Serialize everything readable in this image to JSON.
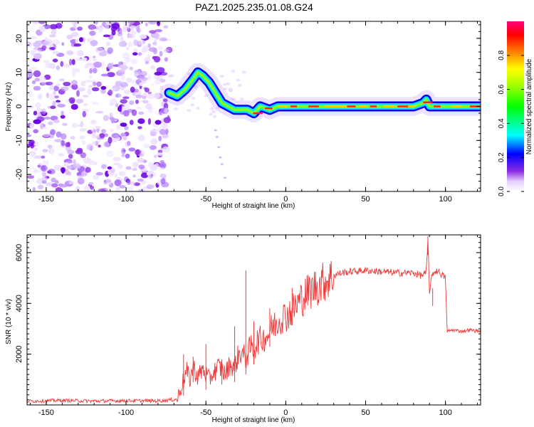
{
  "chart_data": [
    {
      "type": "heatmap",
      "title": "PAZ1.2025.235.01.08.G24",
      "xlabel": "Height of straight line (km)",
      "ylabel": "Frequency (Hz)",
      "xlim": [
        -162,
        122
      ],
      "ylim": [
        -25,
        25
      ],
      "x_ticks": [
        -150,
        -100,
        -50,
        0,
        50,
        100
      ],
      "y_ticks": [
        -20,
        -10,
        0,
        10,
        20
      ],
      "colorbar": {
        "label": "Normalized spectral amplitude",
        "range": [
          0,
          1
        ],
        "ticks": [
          0.0,
          0.2,
          0.4,
          0.6,
          0.8
        ],
        "tick_labels": [
          "0.0",
          "0.2",
          "0.4",
          "0.6",
          "0.8"
        ]
      },
      "noise_region_x": [
        -162,
        -73
      ],
      "signal_track": {
        "x": [
          -73,
          -68,
          -63,
          -58,
          -55,
          -52,
          -48,
          -44,
          -40,
          -36,
          -32,
          -28,
          -24,
          -20,
          -16,
          -10,
          -5,
          0,
          10,
          30,
          50,
          70,
          80,
          86,
          88,
          90,
          95,
          100,
          110,
          122
        ],
        "frequency": [
          4,
          3,
          5,
          8,
          10,
          9,
          7,
          4,
          1,
          0,
          -1,
          -1,
          -1,
          -2,
          0,
          -1,
          0,
          0,
          0,
          0,
          0,
          0,
          0,
          1,
          2,
          0,
          0,
          0,
          0,
          0
        ]
      }
    },
    {
      "type": "line",
      "xlabel": "Height of straight line (km)",
      "ylabel": "SNR (10 * v/v)",
      "xlim": [
        -162,
        122
      ],
      "ylim": [
        0,
        6700
      ],
      "x_ticks": [
        -150,
        -100,
        -50,
        0,
        50,
        100
      ],
      "y_ticks": [
        2000,
        4000,
        6000
      ],
      "series": [
        {
          "name": "SNR",
          "color": "#ee3a3a",
          "x": [
            -162,
            -140,
            -120,
            -100,
            -80,
            -68,
            -65,
            -62,
            -60,
            -58,
            -55,
            -52,
            -50,
            -48,
            -45,
            -42,
            -40,
            -38,
            -35,
            -32,
            -30,
            -28,
            -25,
            -22,
            -20,
            -18,
            -15,
            -12,
            -10,
            -8,
            -5,
            -2,
            0,
            5,
            10,
            15,
            20,
            25,
            30,
            35,
            40,
            50,
            60,
            70,
            80,
            85,
            88,
            89,
            90,
            92,
            95,
            100,
            101,
            105,
            110,
            115,
            122
          ],
          "y": [
            150,
            180,
            150,
            170,
            160,
            220,
            800,
            1300,
            1000,
            1500,
            1100,
            1400,
            1200,
            1000,
            1300,
            1500,
            1400,
            1200,
            1600,
            1500,
            1900,
            2100,
            1800,
            2300,
            2200,
            2500,
            2600,
            2700,
            2900,
            3100,
            3300,
            3500,
            3500,
            3800,
            4200,
            4500,
            4700,
            4900,
            5100,
            5200,
            5250,
            5300,
            5250,
            5200,
            5200,
            5100,
            5200,
            6500,
            4500,
            5200,
            5300,
            5000,
            2900,
            2950,
            2900,
            2950,
            2900
          ],
          "spikes": [
            {
              "x": -64,
              "y": 2000
            },
            {
              "x": -58,
              "y": 1900
            },
            {
              "x": -50,
              "y": 2400
            },
            {
              "x": -40,
              "y": 1800
            },
            {
              "x": -32,
              "y": 3100
            },
            {
              "x": -25,
              "y": 5300
            },
            {
              "x": -20,
              "y": 3300
            },
            {
              "x": -10,
              "y": 3800
            },
            {
              "x": 4,
              "y": 4600
            },
            {
              "x": 89,
              "y": 6650
            },
            {
              "x": 92,
              "y": 3900
            }
          ]
        }
      ]
    }
  ]
}
